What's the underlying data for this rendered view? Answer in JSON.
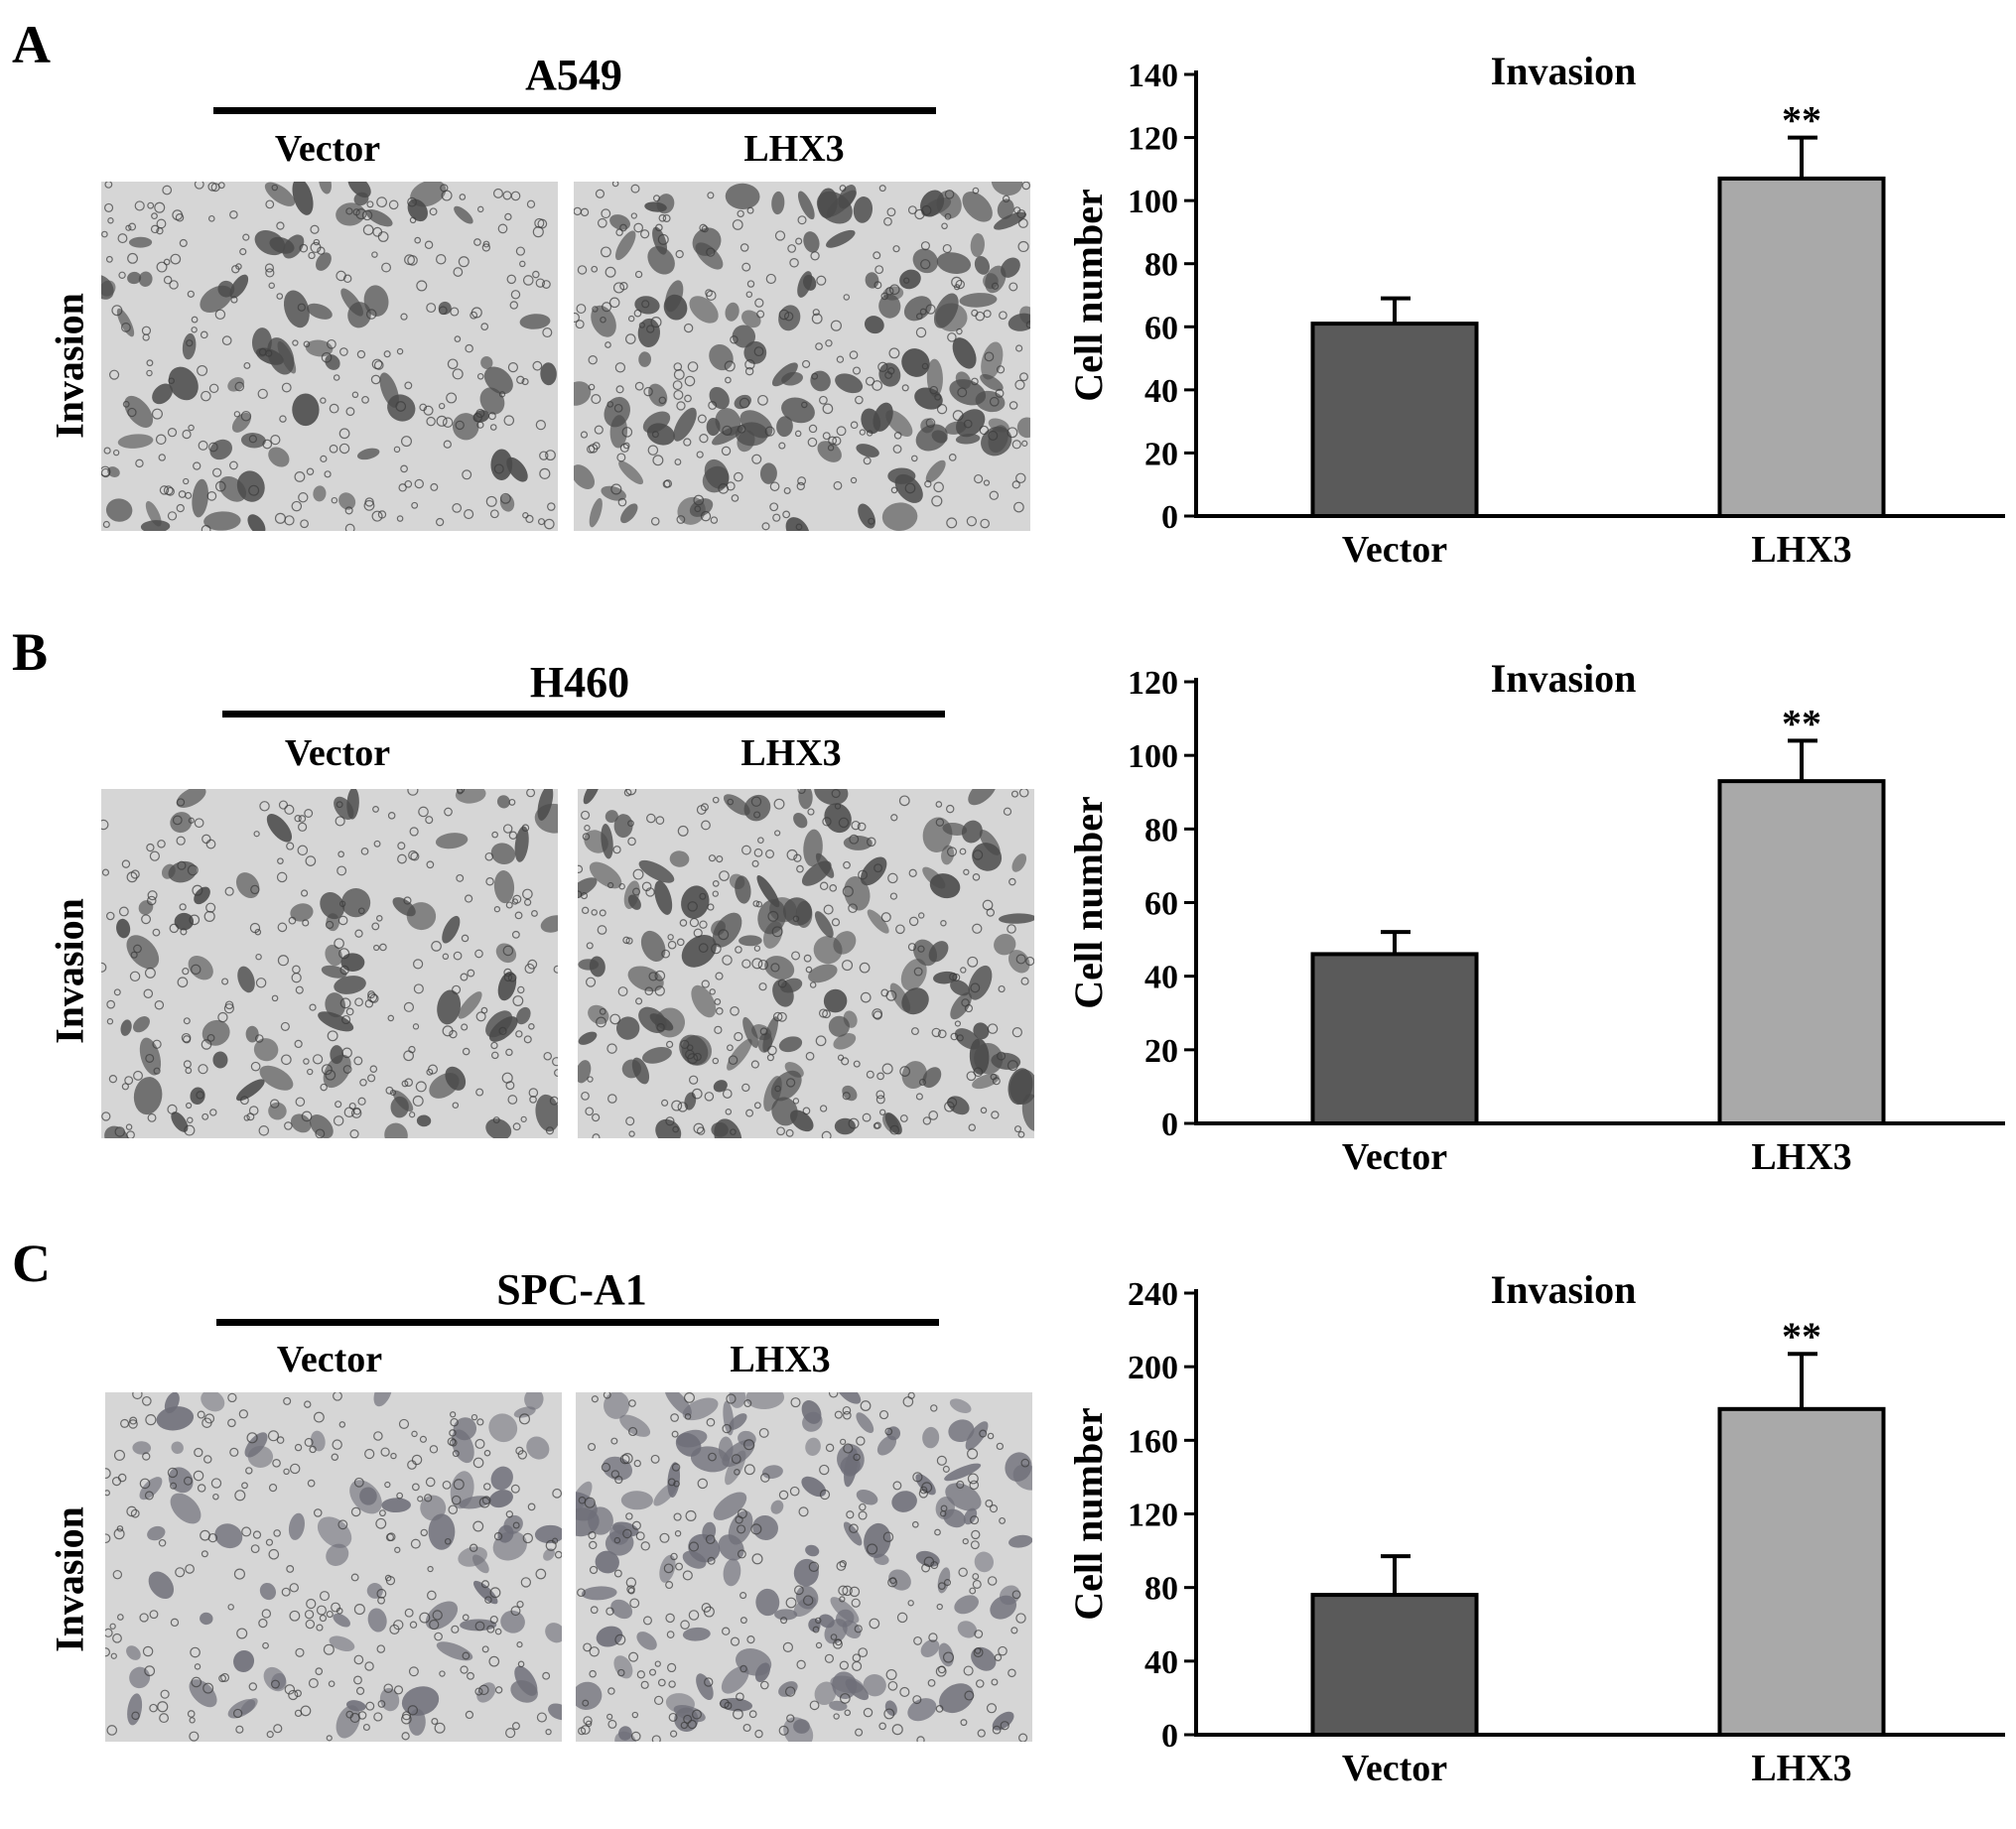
{
  "panels": [
    {
      "letter": "A",
      "cell_line": "A549",
      "conditions": [
        "Vector",
        "LHX3"
      ],
      "row_label": "Invasion",
      "chart_data": {
        "type": "bar",
        "title": "Invasion",
        "ylabel": "Cell number",
        "xlabel": "",
        "categories": [
          "Vector",
          "LHX3"
        ],
        "values": [
          61,
          107
        ],
        "errors": [
          8,
          13
        ],
        "annotations": [
          "",
          "**"
        ],
        "ylim": [
          0,
          140
        ],
        "yticks": [
          0,
          20,
          40,
          60,
          80,
          100,
          120,
          140
        ],
        "colors": [
          "#5a5a5a",
          "#a9a9a9"
        ],
        "grid": false
      }
    },
    {
      "letter": "B",
      "cell_line": "H460",
      "conditions": [
        "Vector",
        "LHX3"
      ],
      "row_label": "Invasion",
      "chart_data": {
        "type": "bar",
        "title": "Invasion",
        "ylabel": "Cell number",
        "xlabel": "",
        "categories": [
          "Vector",
          "LHX3"
        ],
        "values": [
          46,
          93
        ],
        "errors": [
          6,
          11
        ],
        "annotations": [
          "",
          "**"
        ],
        "ylim": [
          0,
          120
        ],
        "yticks": [
          0,
          20,
          40,
          60,
          80,
          100,
          120
        ],
        "colors": [
          "#5a5a5a",
          "#a9a9a9"
        ],
        "grid": false
      }
    },
    {
      "letter": "C",
      "cell_line": "SPC-A1",
      "conditions": [
        "Vector",
        "LHX3"
      ],
      "row_label": "Invasion",
      "chart_data": {
        "type": "bar",
        "title": "Invasion",
        "ylabel": "Cell number",
        "xlabel": "",
        "categories": [
          "Vector",
          "LHX3"
        ],
        "values": [
          76,
          177
        ],
        "errors": [
          21,
          30
        ],
        "annotations": [
          "",
          "**"
        ],
        "ylim": [
          0,
          240
        ],
        "yticks": [
          0,
          40,
          80,
          120,
          160,
          200,
          240
        ],
        "colors": [
          "#5a5a5a",
          "#a9a9a9"
        ],
        "grid": false
      }
    }
  ]
}
